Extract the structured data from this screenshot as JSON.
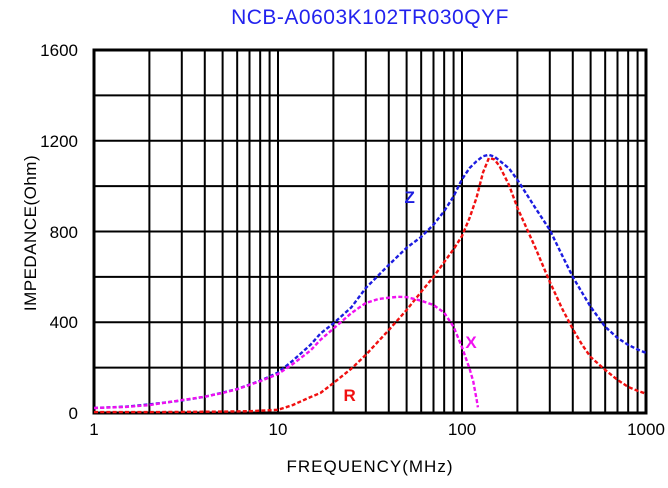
{
  "title": {
    "text": "NCB-A0603K102TR030QYF",
    "color": "#2222ee"
  },
  "chart_data": {
    "type": "line",
    "title": "NCB-A0603K102TR030QYF",
    "xlabel": "FREQUENCY(MHz)",
    "ylabel": "IMPEDANCE(Ohm)",
    "x_scale": "log",
    "xlim": [
      1,
      1000
    ],
    "ylim": [
      0,
      1600
    ],
    "y_grid_step": 200,
    "grid": "on",
    "legend_position": "inline-curve-labels",
    "x_ticks": [
      {
        "v": 1,
        "label": "1"
      },
      {
        "v": 10,
        "label": "10"
      },
      {
        "v": 100,
        "label": "100"
      },
      {
        "v": 1000,
        "label": "1000"
      }
    ],
    "y_ticks": [
      {
        "v": 0,
        "label": "0"
      },
      {
        "v": 400,
        "label": "400"
      },
      {
        "v": 800,
        "label": "800"
      },
      {
        "v": 1200,
        "label": "1200"
      },
      {
        "v": 1600,
        "label": "1600"
      }
    ],
    "series": [
      {
        "name": "Z",
        "color": "#1c1ce0",
        "label_pos": [
          52,
          950
        ],
        "points": [
          [
            1,
            22
          ],
          [
            1.5,
            28
          ],
          [
            2,
            38
          ],
          [
            3,
            55
          ],
          [
            4,
            72
          ],
          [
            5,
            90
          ],
          [
            6,
            106
          ],
          [
            7,
            125
          ],
          [
            8,
            142
          ],
          [
            10,
            178
          ],
          [
            12,
            230
          ],
          [
            15,
            300
          ],
          [
            17,
            350
          ],
          [
            20,
            395
          ],
          [
            25,
            465
          ],
          [
            30,
            551
          ],
          [
            40,
            653
          ],
          [
            50,
            728
          ],
          [
            60,
            776
          ],
          [
            70,
            830
          ],
          [
            80,
            890
          ],
          [
            90,
            955
          ],
          [
            100,
            1030
          ],
          [
            110,
            1080
          ],
          [
            120,
            1110
          ],
          [
            130,
            1132
          ],
          [
            140,
            1138
          ],
          [
            150,
            1130
          ],
          [
            160,
            1112
          ],
          [
            180,
            1078
          ],
          [
            200,
            1028
          ],
          [
            250,
            905
          ],
          [
            300,
            807
          ],
          [
            350,
            695
          ],
          [
            400,
            600
          ],
          [
            450,
            530
          ],
          [
            500,
            468
          ],
          [
            600,
            380
          ],
          [
            700,
            331
          ],
          [
            800,
            300
          ],
          [
            900,
            280
          ],
          [
            1000,
            265
          ]
        ]
      },
      {
        "name": "R",
        "color": "#f01010",
        "label_pos": [
          24.5,
          78
        ],
        "points": [
          [
            1,
            4
          ],
          [
            2,
            4
          ],
          [
            3,
            5
          ],
          [
            5,
            6
          ],
          [
            7,
            8
          ],
          [
            10,
            14
          ],
          [
            12,
            35
          ],
          [
            15,
            70
          ],
          [
            17,
            88
          ],
          [
            20,
            132
          ],
          [
            25,
            195
          ],
          [
            30,
            256
          ],
          [
            40,
            366
          ],
          [
            50,
            454
          ],
          [
            60,
            534
          ],
          [
            70,
            600
          ],
          [
            80,
            665
          ],
          [
            90,
            722
          ],
          [
            100,
            780
          ],
          [
            110,
            860
          ],
          [
            120,
            950
          ],
          [
            130,
            1060
          ],
          [
            140,
            1124
          ],
          [
            150,
            1118
          ],
          [
            160,
            1088
          ],
          [
            180,
            1005
          ],
          [
            200,
            905
          ],
          [
            250,
            730
          ],
          [
            300,
            578
          ],
          [
            350,
            460
          ],
          [
            400,
            370
          ],
          [
            450,
            300
          ],
          [
            500,
            247
          ],
          [
            600,
            190
          ],
          [
            700,
            146
          ],
          [
            800,
            115
          ],
          [
            900,
            98
          ],
          [
            1000,
            85
          ]
        ]
      },
      {
        "name": "X",
        "color": "#f010f0",
        "label_pos": [
          112,
          310
        ],
        "points": [
          [
            1,
            22
          ],
          [
            1.5,
            27
          ],
          [
            2,
            35
          ],
          [
            3,
            57
          ],
          [
            4,
            72
          ],
          [
            5,
            88
          ],
          [
            6,
            105
          ],
          [
            7,
            124
          ],
          [
            8,
            140
          ],
          [
            10,
            172
          ],
          [
            12,
            215
          ],
          [
            15,
            275
          ],
          [
            17,
            322
          ],
          [
            20,
            372
          ],
          [
            25,
            440
          ],
          [
            30,
            485
          ],
          [
            35,
            502
          ],
          [
            40,
            508
          ],
          [
            45,
            512
          ],
          [
            50,
            511
          ],
          [
            60,
            495
          ],
          [
            70,
            476
          ],
          [
            80,
            442
          ],
          [
            90,
            380
          ],
          [
            100,
            290
          ],
          [
            110,
            195
          ],
          [
            115,
            140
          ],
          [
            120,
            60
          ],
          [
            122,
            25
          ]
        ]
      }
    ]
  }
}
